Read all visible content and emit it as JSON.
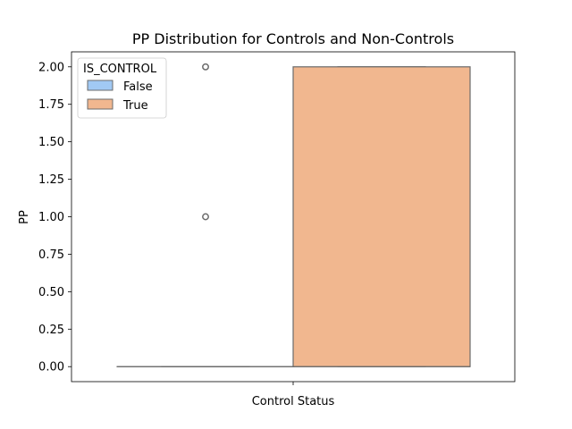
{
  "chart_data": {
    "type": "box",
    "title": "PP Distribution for Controls and Non-Controls",
    "xlabel": "Control Status",
    "ylabel": "PP",
    "ylim": [
      -0.1,
      2.1
    ],
    "yticks": [
      {
        "value": 0.0,
        "label": "0.00"
      },
      {
        "value": 0.25,
        "label": "0.25"
      },
      {
        "value": 0.5,
        "label": "0.50"
      },
      {
        "value": 0.75,
        "label": "0.75"
      },
      {
        "value": 1.0,
        "label": "1.00"
      },
      {
        "value": 1.25,
        "label": "1.25"
      },
      {
        "value": 1.5,
        "label": "1.50"
      },
      {
        "value": 1.75,
        "label": "1.75"
      },
      {
        "value": 2.0,
        "label": "2.00"
      }
    ],
    "legend": {
      "title": "IS_CONTROL",
      "placement": "top-left",
      "entries": [
        {
          "label": "False",
          "color": "#a1c9f4"
        },
        {
          "label": "True",
          "color": "#f1b78f"
        }
      ]
    },
    "series": [
      {
        "name": "False",
        "color": "#a1c9f4",
        "whisker_low": 0,
        "q1": 0,
        "median": 0,
        "q3": 0,
        "whisker_high": 0,
        "outliers": [
          1.0,
          2.0
        ]
      },
      {
        "name": "True",
        "color": "#f1b78f",
        "whisker_low": 0,
        "q1": 0,
        "median": 0,
        "q3": 2.0,
        "whisker_high": 2.0,
        "outliers": []
      }
    ],
    "grid": false
  }
}
